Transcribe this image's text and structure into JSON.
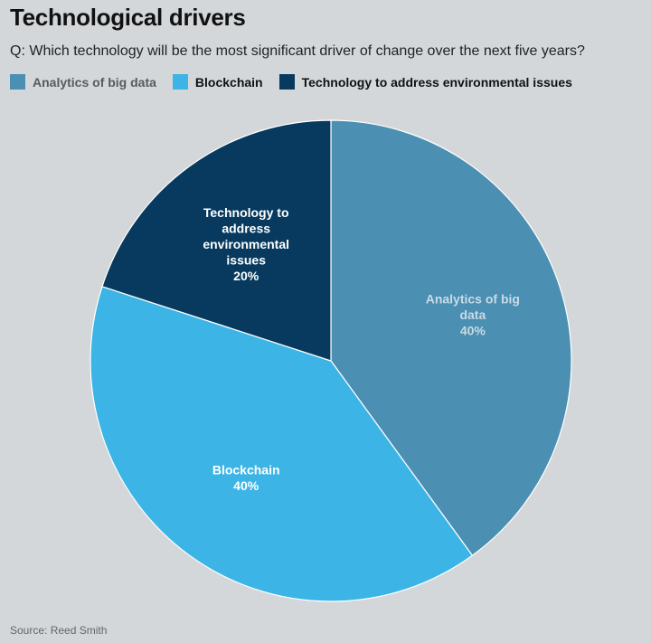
{
  "title": "Technological drivers",
  "subtitle": "Q: Which technology will be the most significant driver of change over the next five years?",
  "source": "Source: Reed Smith",
  "legend": [
    {
      "label": "Analytics of big data",
      "color": "#4b8fb2",
      "text_color": "#555b60"
    },
    {
      "label": "Blockchain",
      "color": "#3cb5e6",
      "text_color": "#111111"
    },
    {
      "label": "Technology to address environmental issues",
      "color": "#073a5e",
      "text_color": "#111111"
    }
  ],
  "chart_data": {
    "type": "pie",
    "title": "Technological drivers",
    "slices": [
      {
        "name": "Analytics of big data",
        "value": 40,
        "color": "#4b8fb2",
        "label_color": "#c9dbe6",
        "label_lines": [
          "Analytics of big",
          "data",
          "40%"
        ]
      },
      {
        "name": "Blockchain",
        "value": 40,
        "color": "#3cb5e6",
        "label_color": "#ffffff",
        "label_lines": [
          "Blockchain",
          "40%"
        ]
      },
      {
        "name": "Technology to address environmental issues",
        "value": 20,
        "color": "#073a5e",
        "label_color": "#ffffff",
        "label_lines": [
          "Technology to",
          "address",
          "environmental",
          "issues",
          "20%"
        ]
      }
    ],
    "start_angle_deg": 0,
    "direction": "clockwise",
    "legend_position": "top-left"
  }
}
